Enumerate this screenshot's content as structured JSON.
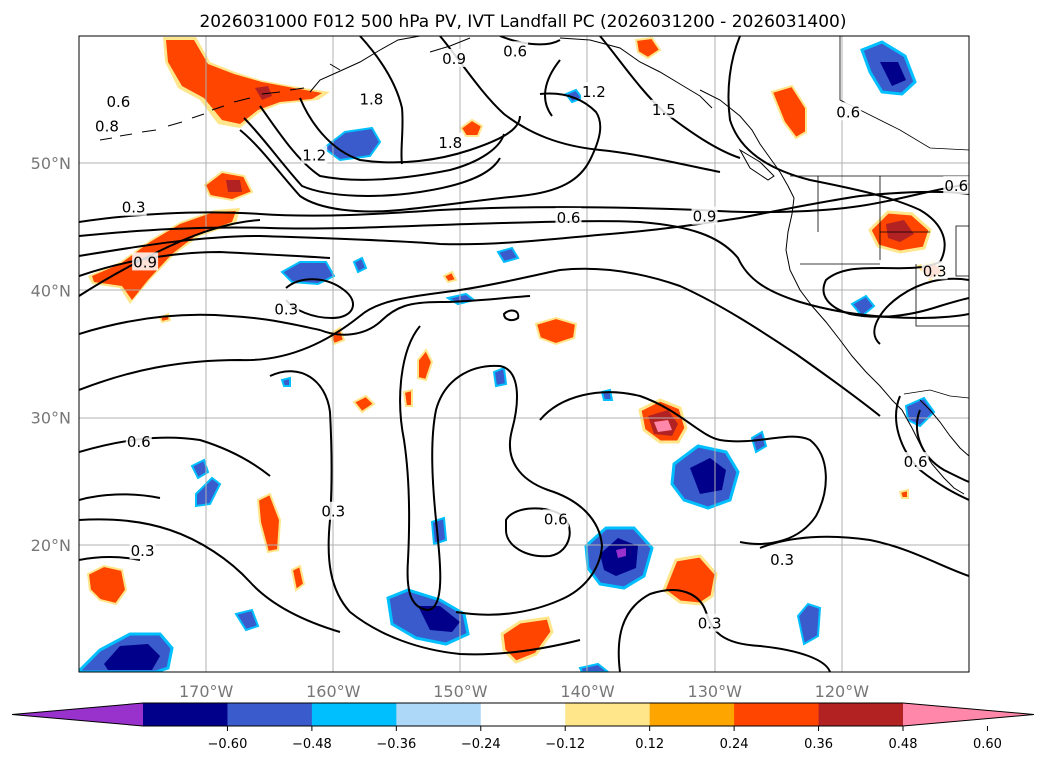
{
  "title": "2026031000 F012 500 hPa PV, IVT Landfall PC (2026031200 - 2026031400)",
  "map": {
    "lon_min": -180,
    "lon_max": -110,
    "lat_min": 10,
    "lat_max": 60,
    "lon_ticks": [
      {
        "lon": -170,
        "label": "170°W"
      },
      {
        "lon": -160,
        "label": "160°W"
      },
      {
        "lon": -150,
        "label": "150°W"
      },
      {
        "lon": -140,
        "label": "140°W"
      },
      {
        "lon": -130,
        "label": "130°W"
      },
      {
        "lon": -120,
        "label": "120°W"
      }
    ],
    "lat_ticks": [
      {
        "lat": 20,
        "label": "20°N"
      },
      {
        "lat": 30,
        "label": "30°N"
      },
      {
        "lat": 40,
        "label": "40°N"
      },
      {
        "lat": 50,
        "label": "50°N"
      }
    ],
    "contour_labels": [
      {
        "text": "0.6",
        "lon": -145.7,
        "lat": 58.8
      },
      {
        "text": "0.9",
        "lon": -150.5,
        "lat": 58.2
      },
      {
        "text": "1.2",
        "lon": -139.5,
        "lat": 55.6
      },
      {
        "text": "1.5",
        "lon": -134.0,
        "lat": 54.2
      },
      {
        "text": "1.8",
        "lon": -157.0,
        "lat": 55.0
      },
      {
        "text": "1.8",
        "lon": -150.8,
        "lat": 51.6
      },
      {
        "text": "1.2",
        "lon": -161.5,
        "lat": 50.6
      },
      {
        "text": "0.6",
        "lon": -176.9,
        "lat": 54.8
      },
      {
        "text": "0.3",
        "lon": -175.7,
        "lat": 46.5
      },
      {
        "text": "0.9",
        "lon": -174.8,
        "lat": 42.2
      },
      {
        "text": "0.6",
        "lon": -141.5,
        "lat": 45.7
      },
      {
        "text": "0.9",
        "lon": -130.8,
        "lat": 45.8
      },
      {
        "text": "0.6",
        "lon": -111.0,
        "lat": 48.2
      },
      {
        "text": "0.3",
        "lon": -112.7,
        "lat": 41.5
      },
      {
        "text": "0.3",
        "lon": -163.7,
        "lat": 38.5
      },
      {
        "text": "0.6",
        "lon": -175.3,
        "lat": 28.1
      },
      {
        "text": "0.3",
        "lon": -160.0,
        "lat": 22.6
      },
      {
        "text": "0.6",
        "lon": -142.5,
        "lat": 22.0
      },
      {
        "text": "0.3",
        "lon": -175.0,
        "lat": 19.5
      },
      {
        "text": "0.3",
        "lon": -124.7,
        "lat": 18.8
      },
      {
        "text": "0.3",
        "lon": -130.4,
        "lat": 13.8
      },
      {
        "text": "0.6",
        "lon": -114.2,
        "lat": 26.5
      },
      {
        "text": "0.6",
        "lon": -119.5,
        "lat": 54.0
      },
      {
        "text": "0.8",
        "lon": -177.8,
        "lat": 52.9
      }
    ]
  },
  "colorbar": {
    "tick_labels": [
      "−0.60",
      "−0.48",
      "−0.36",
      "−0.24",
      "−0.12",
      "0.12",
      "0.24",
      "0.36",
      "0.48",
      "0.60"
    ],
    "colors": [
      "#9932cc",
      "#00008b",
      "#3a5bcc",
      "#00bfff",
      "#add8f7",
      "#ffffff",
      "#ffe68a",
      "#ffa500",
      "#ff4500",
      "#b22222",
      "#ff88aa"
    ]
  }
}
